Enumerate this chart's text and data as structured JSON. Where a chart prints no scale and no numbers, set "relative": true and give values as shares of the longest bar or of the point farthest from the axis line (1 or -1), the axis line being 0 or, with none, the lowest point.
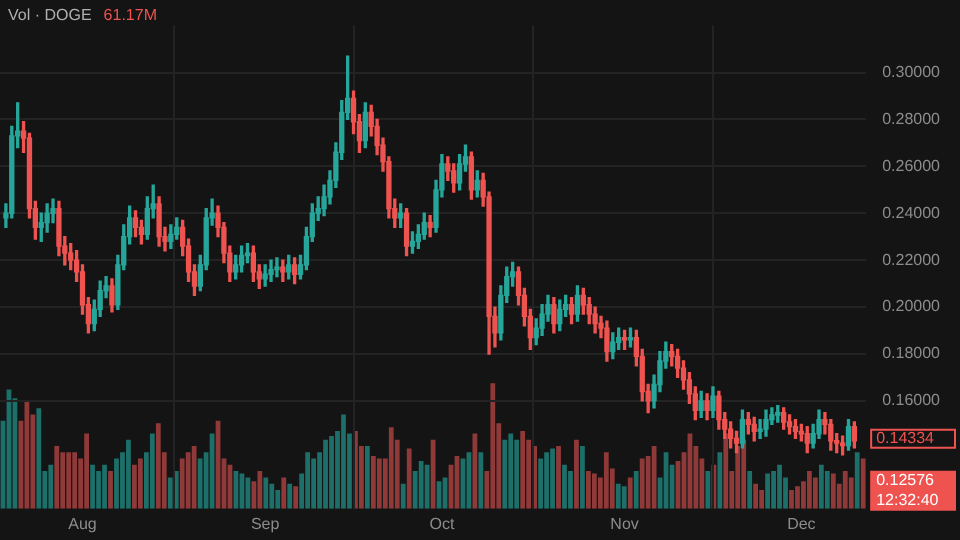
{
  "chart_data": [
    {
      "type": "candlestick",
      "x": [
        "--07-19",
        "--07-20",
        "--07-21",
        "--07-22",
        "--07-23",
        "--07-24",
        "--07-25",
        "--07-26",
        "--07-27",
        "--07-28",
        "--07-29",
        "--07-30",
        "--07-31",
        "--08-01",
        "--08-02",
        "--08-03",
        "--08-04",
        "--08-05",
        "--08-06",
        "--08-07",
        "--08-08",
        "--08-09",
        "--08-10",
        "--08-11",
        "--08-12",
        "--08-13",
        "--08-14",
        "--08-15",
        "--08-16",
        "--08-17",
        "--08-18",
        "--08-19",
        "--08-20",
        "--08-21",
        "--08-22",
        "--08-23",
        "--08-24",
        "--08-25",
        "--08-26",
        "--08-27",
        "--08-28",
        "--08-29",
        "--08-30",
        "--08-31",
        "--09-01",
        "--09-02",
        "--09-03",
        "--09-04",
        "--09-05",
        "--09-06",
        "--09-07",
        "--09-08",
        "--09-09",
        "--09-10",
        "--09-11",
        "--09-12",
        "--09-13",
        "--09-14",
        "--09-15",
        "--09-16",
        "--09-17",
        "--09-18",
        "--09-19",
        "--09-20",
        "--09-21",
        "--09-22",
        "--09-23",
        "--09-24",
        "--09-25",
        "--09-26",
        "--09-27",
        "--09-28",
        "--09-29",
        "--09-30",
        "--10-01",
        "--10-02",
        "--10-03",
        "--10-04",
        "--10-05",
        "--10-06",
        "--10-07",
        "--10-08",
        "--10-09",
        "--10-10",
        "--10-11",
        "--10-12",
        "--10-13",
        "--10-14",
        "--10-15",
        "--10-16",
        "--10-17",
        "--10-18",
        "--10-19",
        "--10-20",
        "--10-21",
        "--10-22",
        "--10-23",
        "--10-24",
        "--10-25",
        "--10-26",
        "--10-27",
        "--10-28",
        "--10-29",
        "--10-30",
        "--10-31",
        "--11-01",
        "--11-02",
        "--11-03",
        "--11-04",
        "--11-05",
        "--11-06",
        "--11-07",
        "--11-08",
        "--11-09",
        "--11-10",
        "--11-11",
        "--11-12",
        "--11-13",
        "--11-14",
        "--11-15",
        "--11-16",
        "--11-17",
        "--11-18",
        "--11-19",
        "--11-20",
        "--11-21",
        "--11-22",
        "--11-23",
        "--11-24",
        "--11-25",
        "--11-26",
        "--11-27",
        "--11-28",
        "--11-29",
        "--11-30",
        "--12-01",
        "--12-02",
        "--12-03",
        "--12-04",
        "--12-05",
        "--12-06",
        "--12-07",
        "--12-08",
        "--12-09",
        "--12-10"
      ],
      "ohlc": [
        [
          0.238,
          0.244,
          0.234,
          0.24
        ],
        [
          0.24,
          0.277,
          0.238,
          0.273
        ],
        [
          0.273,
          0.287,
          0.268,
          0.275
        ],
        [
          0.275,
          0.279,
          0.266,
          0.272
        ],
        [
          0.272,
          0.274,
          0.238,
          0.242
        ],
        [
          0.242,
          0.245,
          0.229,
          0.234
        ],
        [
          0.234,
          0.24,
          0.228,
          0.236
        ],
        [
          0.236,
          0.244,
          0.232,
          0.24
        ],
        [
          0.24,
          0.246,
          0.236,
          0.242
        ],
        [
          0.242,
          0.245,
          0.222,
          0.226
        ],
        [
          0.226,
          0.23,
          0.218,
          0.223
        ],
        [
          0.223,
          0.227,
          0.216,
          0.22
        ],
        [
          0.22,
          0.224,
          0.211,
          0.215
        ],
        [
          0.215,
          0.218,
          0.197,
          0.201
        ],
        [
          0.201,
          0.204,
          0.189,
          0.193
        ],
        [
          0.193,
          0.203,
          0.19,
          0.199
        ],
        [
          0.199,
          0.211,
          0.196,
          0.207
        ],
        [
          0.207,
          0.213,
          0.204,
          0.209
        ],
        [
          0.209,
          0.212,
          0.198,
          0.201
        ],
        [
          0.201,
          0.222,
          0.199,
          0.218
        ],
        [
          0.218,
          0.235,
          0.216,
          0.23
        ],
        [
          0.23,
          0.243,
          0.227,
          0.238
        ],
        [
          0.238,
          0.241,
          0.23,
          0.234
        ],
        [
          0.234,
          0.237,
          0.227,
          0.231
        ],
        [
          0.231,
          0.247,
          0.229,
          0.242
        ],
        [
          0.242,
          0.252,
          0.238,
          0.244
        ],
        [
          0.244,
          0.247,
          0.226,
          0.23
        ],
        [
          0.23,
          0.234,
          0.224,
          0.228
        ],
        [
          0.228,
          0.235,
          0.225,
          0.231
        ],
        [
          0.231,
          0.238,
          0.229,
          0.234
        ],
        [
          0.234,
          0.237,
          0.222,
          0.226
        ],
        [
          0.226,
          0.229,
          0.211,
          0.215
        ],
        [
          0.215,
          0.218,
          0.205,
          0.209
        ],
        [
          0.209,
          0.222,
          0.207,
          0.218
        ],
        [
          0.218,
          0.242,
          0.216,
          0.238
        ],
        [
          0.238,
          0.246,
          0.235,
          0.24
        ],
        [
          0.24,
          0.243,
          0.23,
          0.234
        ],
        [
          0.234,
          0.236,
          0.219,
          0.223
        ],
        [
          0.223,
          0.226,
          0.211,
          0.215
        ],
        [
          0.215,
          0.222,
          0.212,
          0.218
        ],
        [
          0.218,
          0.226,
          0.215,
          0.222
        ],
        [
          0.222,
          0.227,
          0.219,
          0.223
        ],
        [
          0.223,
          0.226,
          0.211,
          0.215
        ],
        [
          0.215,
          0.218,
          0.208,
          0.212
        ],
        [
          0.212,
          0.218,
          0.209,
          0.214
        ],
        [
          0.214,
          0.22,
          0.211,
          0.216
        ],
        [
          0.216,
          0.221,
          0.213,
          0.217
        ],
        [
          0.217,
          0.22,
          0.211,
          0.215
        ],
        [
          0.215,
          0.222,
          0.212,
          0.218
        ],
        [
          0.218,
          0.221,
          0.21,
          0.214
        ],
        [
          0.214,
          0.222,
          0.212,
          0.218
        ],
        [
          0.218,
          0.234,
          0.216,
          0.23
        ],
        [
          0.23,
          0.244,
          0.228,
          0.24
        ],
        [
          0.24,
          0.247,
          0.237,
          0.242
        ],
        [
          0.242,
          0.252,
          0.239,
          0.247
        ],
        [
          0.247,
          0.258,
          0.244,
          0.254
        ],
        [
          0.254,
          0.27,
          0.251,
          0.266
        ],
        [
          0.266,
          0.288,
          0.263,
          0.283
        ],
        [
          0.283,
          0.307,
          0.28,
          0.289
        ],
        [
          0.289,
          0.292,
          0.274,
          0.279
        ],
        [
          0.279,
          0.282,
          0.266,
          0.271
        ],
        [
          0.271,
          0.287,
          0.268,
          0.283
        ],
        [
          0.283,
          0.286,
          0.273,
          0.277
        ],
        [
          0.277,
          0.28,
          0.265,
          0.269
        ],
        [
          0.269,
          0.272,
          0.258,
          0.262
        ],
        [
          0.262,
          0.264,
          0.238,
          0.242
        ],
        [
          0.242,
          0.246,
          0.234,
          0.238
        ],
        [
          0.238,
          0.244,
          0.234,
          0.24
        ],
        [
          0.24,
          0.242,
          0.222,
          0.226
        ],
        [
          0.226,
          0.232,
          0.223,
          0.228
        ],
        [
          0.228,
          0.235,
          0.225,
          0.231
        ],
        [
          0.231,
          0.24,
          0.229,
          0.236
        ],
        [
          0.236,
          0.239,
          0.23,
          0.234
        ],
        [
          0.234,
          0.254,
          0.232,
          0.25
        ],
        [
          0.25,
          0.265,
          0.247,
          0.261
        ],
        [
          0.261,
          0.264,
          0.254,
          0.258
        ],
        [
          0.258,
          0.261,
          0.249,
          0.253
        ],
        [
          0.253,
          0.265,
          0.25,
          0.261
        ],
        [
          0.261,
          0.269,
          0.258,
          0.264
        ],
        [
          0.264,
          0.266,
          0.246,
          0.25
        ],
        [
          0.25,
          0.258,
          0.247,
          0.254
        ],
        [
          0.254,
          0.257,
          0.243,
          0.247
        ],
        [
          0.247,
          0.249,
          0.18,
          0.196
        ],
        [
          0.196,
          0.2,
          0.183,
          0.189
        ],
        [
          0.189,
          0.209,
          0.186,
          0.205
        ],
        [
          0.205,
          0.217,
          0.202,
          0.213
        ],
        [
          0.213,
          0.219,
          0.209,
          0.215
        ],
        [
          0.215,
          0.217,
          0.201,
          0.205
        ],
        [
          0.205,
          0.208,
          0.192,
          0.196
        ],
        [
          0.196,
          0.199,
          0.182,
          0.187
        ],
        [
          0.187,
          0.195,
          0.184,
          0.191
        ],
        [
          0.191,
          0.201,
          0.188,
          0.197
        ],
        [
          0.197,
          0.205,
          0.194,
          0.201
        ],
        [
          0.201,
          0.204,
          0.189,
          0.193
        ],
        [
          0.193,
          0.203,
          0.19,
          0.199
        ],
        [
          0.199,
          0.205,
          0.196,
          0.201
        ],
        [
          0.201,
          0.204,
          0.193,
          0.197
        ],
        [
          0.197,
          0.209,
          0.194,
          0.205
        ],
        [
          0.205,
          0.208,
          0.197,
          0.201
        ],
        [
          0.201,
          0.204,
          0.193,
          0.197
        ],
        [
          0.197,
          0.2,
          0.189,
          0.193
        ],
        [
          0.193,
          0.196,
          0.187,
          0.191
        ],
        [
          0.191,
          0.194,
          0.177,
          0.181
        ],
        [
          0.181,
          0.189,
          0.178,
          0.185
        ],
        [
          0.185,
          0.191,
          0.182,
          0.187
        ],
        [
          0.187,
          0.19,
          0.182,
          0.186
        ],
        [
          0.186,
          0.191,
          0.183,
          0.187
        ],
        [
          0.187,
          0.19,
          0.175,
          0.179
        ],
        [
          0.179,
          0.182,
          0.16,
          0.164
        ],
        [
          0.164,
          0.167,
          0.155,
          0.16
        ],
        [
          0.16,
          0.171,
          0.157,
          0.167
        ],
        [
          0.167,
          0.181,
          0.164,
          0.177
        ],
        [
          0.177,
          0.185,
          0.174,
          0.181
        ],
        [
          0.181,
          0.184,
          0.175,
          0.179
        ],
        [
          0.179,
          0.182,
          0.17,
          0.174
        ],
        [
          0.174,
          0.177,
          0.165,
          0.169
        ],
        [
          0.169,
          0.172,
          0.159,
          0.163
        ],
        [
          0.163,
          0.166,
          0.152,
          0.156
        ],
        [
          0.156,
          0.164,
          0.153,
          0.16
        ],
        [
          0.16,
          0.163,
          0.152,
          0.156
        ],
        [
          0.156,
          0.166,
          0.153,
          0.162
        ],
        [
          0.162,
          0.164,
          0.148,
          0.152
        ],
        [
          0.152,
          0.155,
          0.144,
          0.148
        ],
        [
          0.148,
          0.151,
          0.14,
          0.144
        ],
        [
          0.144,
          0.147,
          0.138,
          0.142
        ],
        [
          0.142,
          0.156,
          0.14,
          0.152
        ],
        [
          0.152,
          0.155,
          0.146,
          0.15
        ],
        [
          0.15,
          0.153,
          0.143,
          0.147
        ],
        [
          0.147,
          0.152,
          0.144,
          0.148
        ],
        [
          0.148,
          0.156,
          0.145,
          0.152
        ],
        [
          0.152,
          0.157,
          0.15,
          0.154
        ],
        [
          0.154,
          0.158,
          0.151,
          0.155
        ],
        [
          0.155,
          0.157,
          0.148,
          0.151
        ],
        [
          0.151,
          0.154,
          0.146,
          0.149
        ],
        [
          0.149,
          0.152,
          0.144,
          0.147
        ],
        [
          0.147,
          0.15,
          0.143,
          0.146
        ],
        [
          0.146,
          0.149,
          0.138,
          0.142
        ],
        [
          0.142,
          0.15,
          0.14,
          0.146
        ],
        [
          0.146,
          0.156,
          0.144,
          0.152
        ],
        [
          0.152,
          0.155,
          0.146,
          0.15
        ],
        [
          0.15,
          0.152,
          0.139,
          0.143
        ],
        [
          0.143,
          0.146,
          0.138,
          0.142
        ],
        [
          0.142,
          0.145,
          0.137,
          0.141
        ],
        [
          0.141,
          0.152,
          0.139,
          0.149
        ],
        [
          0.149,
          0.151,
          0.14,
          0.143
        ]
      ],
      "colors": [
        "#26a69a",
        "#26a69a",
        "#26a69a",
        "#ef5350",
        "#ef5350",
        "#ef5350",
        "#26a69a",
        "#26a69a",
        "#26a69a",
        "#ef5350",
        "#ef5350",
        "#ef5350",
        "#ef5350",
        "#ef5350",
        "#ef5350",
        "#26a69a",
        "#26a69a",
        "#26a69a",
        "#ef5350",
        "#26a69a",
        "#26a69a",
        "#26a69a",
        "#ef5350",
        "#ef5350",
        "#26a69a",
        "#26a69a",
        "#ef5350",
        "#ef5350",
        "#26a69a",
        "#26a69a",
        "#ef5350",
        "#ef5350",
        "#ef5350",
        "#26a69a",
        "#26a69a",
        "#26a69a",
        "#ef5350",
        "#ef5350",
        "#ef5350",
        "#26a69a",
        "#26a69a",
        "#26a69a",
        "#ef5350",
        "#ef5350",
        "#26a69a",
        "#26a69a",
        "#26a69a",
        "#ef5350",
        "#26a69a",
        "#ef5350",
        "#26a69a",
        "#26a69a",
        "#26a69a",
        "#26a69a",
        "#26a69a",
        "#26a69a",
        "#26a69a",
        "#26a69a",
        "#26a69a",
        "#ef5350",
        "#ef5350",
        "#26a69a",
        "#ef5350",
        "#ef5350",
        "#ef5350",
        "#ef5350",
        "#ef5350",
        "#26a69a",
        "#ef5350",
        "#26a69a",
        "#26a69a",
        "#26a69a",
        "#ef5350",
        "#26a69a",
        "#26a69a",
        "#ef5350",
        "#ef5350",
        "#26a69a",
        "#26a69a",
        "#ef5350",
        "#26a69a",
        "#ef5350",
        "#ef5350",
        "#ef5350",
        "#26a69a",
        "#26a69a",
        "#26a69a",
        "#ef5350",
        "#ef5350",
        "#ef5350",
        "#26a69a",
        "#26a69a",
        "#26a69a",
        "#ef5350",
        "#26a69a",
        "#26a69a",
        "#ef5350",
        "#26a69a",
        "#ef5350",
        "#ef5350",
        "#ef5350",
        "#ef5350",
        "#ef5350",
        "#26a69a",
        "#26a69a",
        "#ef5350",
        "#26a69a",
        "#ef5350",
        "#ef5350",
        "#ef5350",
        "#26a69a",
        "#26a69a",
        "#26a69a",
        "#ef5350",
        "#ef5350",
        "#ef5350",
        "#ef5350",
        "#ef5350",
        "#26a69a",
        "#ef5350",
        "#26a69a",
        "#ef5350",
        "#ef5350",
        "#ef5350",
        "#ef5350",
        "#26a69a",
        "#ef5350",
        "#ef5350",
        "#26a69a",
        "#26a69a",
        "#26a69a",
        "#26a69a",
        "#ef5350",
        "#ef5350",
        "#ef5350",
        "#ef5350",
        "#ef5350",
        "#26a69a",
        "#26a69a",
        "#ef5350",
        "#ef5350",
        "#ef5350",
        "#ef5350",
        "#26a69a",
        "#ef5350"
      ],
      "xlim": [
        "--07-18",
        "--12-12"
      ],
      "xticks": [
        {
          "value": "--08-01",
          "label": "Aug"
        },
        {
          "value": "--09-01",
          "label": "Sep"
        },
        {
          "value": "--10-01",
          "label": "Oct"
        },
        {
          "value": "--11-01",
          "label": "Nov"
        },
        {
          "value": "--12-01",
          "label": "Dec"
        }
      ],
      "ylim": [
        0.114,
        0.32
      ],
      "yticks": [
        {
          "value": 0.16,
          "label": "0.16000"
        },
        {
          "value": 0.18,
          "label": "0.18000"
        },
        {
          "value": 0.2,
          "label": "0.20000"
        },
        {
          "value": 0.22,
          "label": "0.22000"
        },
        {
          "value": 0.24,
          "label": "0.24000"
        },
        {
          "value": 0.26,
          "label": "0.26000"
        },
        {
          "value": 0.28,
          "label": "0.28000"
        },
        {
          "value": 0.3,
          "label": "0.30000"
        }
      ],
      "grid": true,
      "annotations": [
        "0.14334",
        "0.12576",
        "12:32:40"
      ]
    },
    {
      "type": "bar",
      "title": "Vol · DOGE",
      "annotations": [
        "61.17M"
      ],
      "relative": true,
      "tick_labels": false,
      "categories": [
        null,
        null,
        null,
        null,
        null,
        null,
        null,
        null,
        null,
        null,
        null,
        null,
        null,
        null,
        null,
        null,
        null,
        null,
        null,
        null,
        null,
        null,
        null,
        null,
        null,
        null,
        null,
        null,
        null,
        null,
        null,
        null,
        null,
        null,
        null,
        null,
        null,
        null,
        null,
        null,
        null,
        null,
        null,
        null,
        null,
        null,
        null,
        null,
        null,
        null,
        null,
        null,
        null,
        null,
        null,
        null,
        null,
        null,
        null,
        null,
        null,
        null,
        null,
        null,
        null,
        null,
        null,
        null,
        null,
        null,
        null,
        null,
        null,
        null,
        null,
        null,
        null,
        null,
        null,
        null,
        null,
        null,
        null,
        null,
        null,
        null,
        null,
        null,
        null,
        null,
        null,
        null,
        null,
        null,
        null,
        null,
        null,
        null,
        null,
        null,
        null,
        null,
        null,
        null,
        null,
        null,
        null,
        null,
        null,
        null,
        null,
        null,
        null,
        null,
        null,
        null,
        null,
        null,
        null,
        null,
        null,
        null,
        null,
        null,
        null,
        null,
        null,
        null,
        null,
        null,
        null,
        null,
        null,
        null,
        null,
        null,
        null,
        null,
        null,
        null,
        null,
        null,
        null,
        null,
        null
      ],
      "values": [
        0.7,
        0.95,
        0.88,
        0.7,
        0.85,
        0.75,
        0.8,
        0.3,
        0.35,
        0.5,
        0.45,
        0.45,
        0.45,
        0.4,
        0.6,
        0.35,
        0.3,
        0.35,
        0.3,
        0.4,
        0.45,
        0.55,
        0.35,
        0.4,
        0.45,
        0.6,
        0.68,
        0.45,
        0.25,
        0.3,
        0.4,
        0.45,
        0.5,
        0.4,
        0.45,
        0.6,
        0.7,
        0.4,
        0.35,
        0.3,
        0.28,
        0.25,
        0.22,
        0.3,
        0.25,
        0.2,
        0.15,
        0.25,
        0.2,
        0.18,
        0.28,
        0.45,
        0.4,
        0.45,
        0.55,
        0.58,
        0.62,
        0.75,
        0.6,
        0.62,
        0.5,
        0.5,
        0.42,
        0.4,
        0.4,
        0.65,
        0.55,
        0.2,
        0.48,
        0.3,
        0.38,
        0.35,
        0.55,
        0.22,
        0.25,
        0.35,
        0.42,
        0.4,
        0.45,
        0.6,
        0.45,
        0.3,
        1.0,
        0.68,
        0.55,
        0.6,
        0.55,
        0.62,
        0.55,
        0.5,
        0.4,
        0.45,
        0.48,
        0.5,
        0.35,
        0.3,
        0.55,
        0.5,
        0.3,
        0.28,
        0.25,
        0.45,
        0.32,
        0.2,
        0.18,
        0.25,
        0.3,
        0.4,
        0.42,
        0.5,
        0.25,
        0.45,
        0.35,
        0.38,
        0.45,
        0.6,
        0.5,
        0.4,
        0.3,
        0.35,
        0.45,
        0.6,
        0.3,
        0.5,
        0.55,
        0.3,
        0.2,
        0.15,
        0.28,
        0.3,
        0.35,
        0.25,
        0.15,
        0.18,
        0.22,
        0.3,
        0.25,
        0.35,
        0.3,
        0.28,
        0.2,
        0.3,
        0.25,
        0.45,
        0.4
      ],
      "colors": [
        "#1d6f69",
        "#1d6f69",
        "#1d6f69",
        "#8f3a39",
        "#8f3a39",
        "#8f3a39",
        "#1d6f69",
        "#1d6f69",
        "#1d6f69",
        "#8f3a39",
        "#8f3a39",
        "#8f3a39",
        "#8f3a39",
        "#8f3a39",
        "#8f3a39",
        "#1d6f69",
        "#1d6f69",
        "#1d6f69",
        "#8f3a39",
        "#1d6f69",
        "#1d6f69",
        "#1d6f69",
        "#8f3a39",
        "#8f3a39",
        "#1d6f69",
        "#1d6f69",
        "#8f3a39",
        "#8f3a39",
        "#1d6f69",
        "#1d6f69",
        "#8f3a39",
        "#8f3a39",
        "#8f3a39",
        "#1d6f69",
        "#1d6f69",
        "#1d6f69",
        "#8f3a39",
        "#8f3a39",
        "#8f3a39",
        "#1d6f69",
        "#1d6f69",
        "#1d6f69",
        "#8f3a39",
        "#8f3a39",
        "#1d6f69",
        "#1d6f69",
        "#1d6f69",
        "#8f3a39",
        "#1d6f69",
        "#8f3a39",
        "#1d6f69",
        "#1d6f69",
        "#1d6f69",
        "#1d6f69",
        "#1d6f69",
        "#1d6f69",
        "#1d6f69",
        "#1d6f69",
        "#1d6f69",
        "#8f3a39",
        "#8f3a39",
        "#1d6f69",
        "#8f3a39",
        "#8f3a39",
        "#8f3a39",
        "#8f3a39",
        "#8f3a39",
        "#1d6f69",
        "#8f3a39",
        "#1d6f69",
        "#1d6f69",
        "#1d6f69",
        "#8f3a39",
        "#1d6f69",
        "#1d6f69",
        "#8f3a39",
        "#8f3a39",
        "#1d6f69",
        "#1d6f69",
        "#8f3a39",
        "#1d6f69",
        "#8f3a39",
        "#8f3a39",
        "#8f3a39",
        "#1d6f69",
        "#1d6f69",
        "#1d6f69",
        "#8f3a39",
        "#8f3a39",
        "#8f3a39",
        "#1d6f69",
        "#1d6f69",
        "#1d6f69",
        "#8f3a39",
        "#1d6f69",
        "#1d6f69",
        "#8f3a39",
        "#1d6f69",
        "#8f3a39",
        "#8f3a39",
        "#8f3a39",
        "#8f3a39",
        "#8f3a39",
        "#1d6f69",
        "#1d6f69",
        "#8f3a39",
        "#1d6f69",
        "#8f3a39",
        "#8f3a39",
        "#8f3a39",
        "#1d6f69",
        "#1d6f69",
        "#1d6f69",
        "#8f3a39",
        "#8f3a39",
        "#8f3a39",
        "#8f3a39",
        "#8f3a39",
        "#1d6f69",
        "#8f3a39",
        "#1d6f69",
        "#8f3a39",
        "#8f3a39",
        "#8f3a39",
        "#8f3a39",
        "#1d6f69",
        "#8f3a39",
        "#8f3a39",
        "#1d6f69",
        "#1d6f69",
        "#1d6f69",
        "#1d6f69",
        "#8f3a39",
        "#8f3a39",
        "#8f3a39",
        "#8f3a39",
        "#8f3a39",
        "#1d6f69",
        "#1d6f69",
        "#8f3a39",
        "#8f3a39",
        "#8f3a39",
        "#8f3a39",
        "#1d6f69",
        "#8f3a39"
      ]
    }
  ]
}
